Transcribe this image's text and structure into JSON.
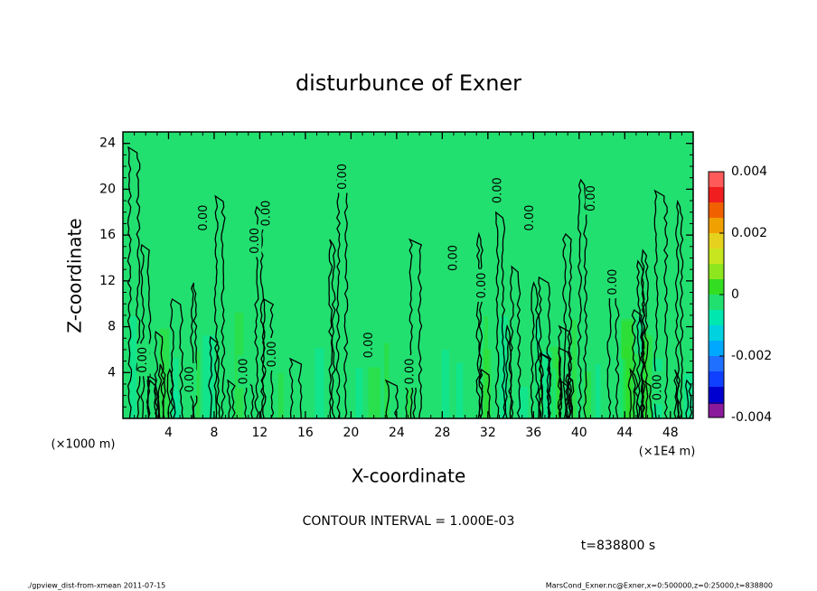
{
  "chart_data": {
    "type": "contour",
    "title": "disturbunce of Exner",
    "x_label": "X-coordinate",
    "y_label": "Z-coordinate",
    "x_unit": "(×1000 m)",
    "x_unit_right": "(×1E4 m)",
    "contour_interval": "CONTOUR INTERVAL = 1.000E-03",
    "time": "t=838800 s",
    "footer_left": "./gpview_dist-from-xmean  2011-07-15",
    "footer_right": "MarsCond_Exner.nc@Exner,x=0:500000,z=0:25000,t=838800",
    "xlim": [
      0,
      50
    ],
    "ylim": [
      0,
      25
    ],
    "xticks": [
      4,
      8,
      12,
      16,
      20,
      24,
      28,
      32,
      36,
      40,
      44,
      48
    ],
    "yticks": [
      4,
      8,
      12,
      16,
      20,
      24
    ],
    "colorbar": {
      "lim": [
        -0.004,
        0.004
      ],
      "ticks": [
        -0.004,
        -0.002,
        0,
        0.002,
        0.004
      ],
      "colors": [
        "#8a1a9a",
        "#1a0090",
        "#0000d0",
        "#1040ff",
        "#2070ff",
        "#00a8ff",
        "#00d2e0",
        "#00e8b0",
        "#22e070",
        "#33dd22",
        "#8ee61e",
        "#c8e61e",
        "#e6d21e",
        "#f0a000",
        "#f06000",
        "#f01e1e",
        "#ff5a5a",
        "#ff9a9a"
      ],
      "levels": [
        -0.004,
        -0.0035,
        -0.003,
        -0.0025,
        -0.002,
        -0.0015,
        -0.001,
        -0.0005,
        0,
        0.0005,
        0.001,
        0.0015,
        0.002,
        0.0025,
        0.003,
        0.0035,
        0.004
      ]
    },
    "contour_labels": {
      "values": [
        0,
        0,
        0,
        0,
        0,
        0,
        0,
        0,
        0,
        0,
        0,
        0,
        0,
        0,
        0,
        0,
        0
      ],
      "value_labels": [
        "0.00",
        "0.00",
        "0.00",
        "0.00",
        "0.00",
        "0.00",
        "0.00",
        "0.00",
        "0.00",
        "0.00",
        "0.00",
        "0.00",
        "0.00",
        "0.00",
        "0.00",
        "0.00",
        "0.00"
      ],
      "x": [
        1.8,
        5.9,
        7.1,
        10.6,
        11.6,
        12.6,
        13.1,
        19.3,
        21.6,
        25.2,
        29,
        31.5,
        32.9,
        35.7,
        41.1,
        43,
        46.9
      ],
      "y": [
        5.1,
        3.4,
        17.5,
        4.1,
        15.5,
        17.9,
        5.6,
        21.1,
        6.4,
        4.1,
        14,
        11.6,
        19.9,
        17.5,
        19.2,
        11.9,
        2.7
      ]
    }
  }
}
